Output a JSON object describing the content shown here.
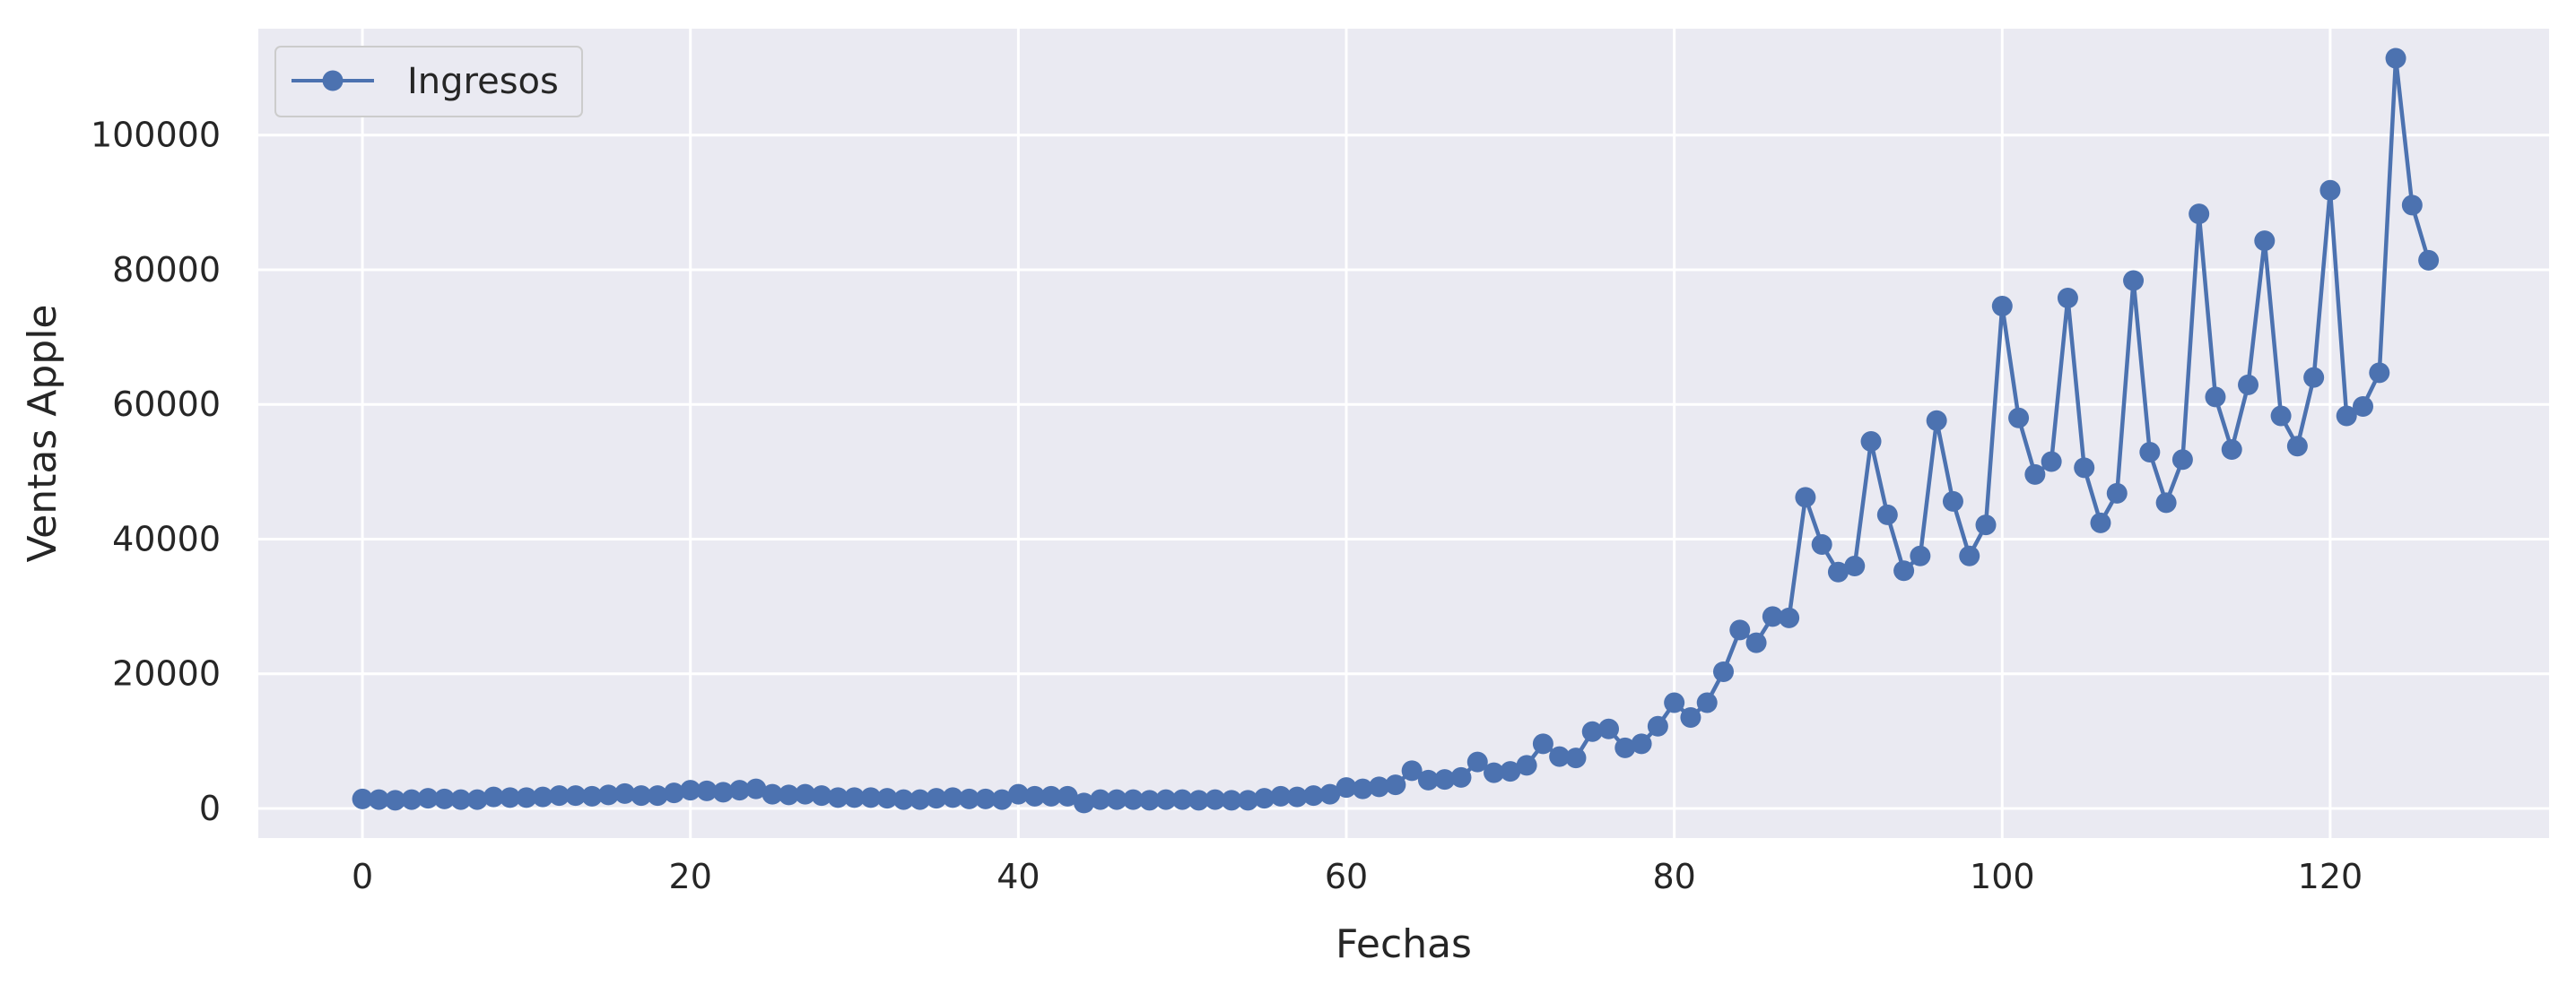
{
  "chart_data": {
    "type": "line",
    "title": "",
    "xlabel": "Fechas",
    "ylabel": "Ventas Apple",
    "xlim": [
      -6.35,
      133.35
    ],
    "ylim": [
      -4400,
      115800
    ],
    "xticks": [
      0,
      20,
      40,
      60,
      80,
      100,
      120
    ],
    "yticks": [
      0,
      20000,
      40000,
      60000,
      80000,
      100000
    ],
    "grid": true,
    "legend_position": "top-left",
    "colors": {
      "series": "#4c72b0",
      "background": "#eaeaf2",
      "grid": "#ffffff",
      "text": "#262626"
    },
    "series": [
      {
        "name": "Ingresos",
        "marker": "circle",
        "x": [
          0,
          1,
          2,
          3,
          4,
          5,
          6,
          7,
          8,
          9,
          10,
          11,
          12,
          13,
          14,
          15,
          16,
          17,
          18,
          19,
          20,
          21,
          22,
          23,
          24,
          25,
          26,
          27,
          28,
          29,
          30,
          31,
          32,
          33,
          34,
          35,
          36,
          37,
          38,
          39,
          40,
          41,
          42,
          43,
          44,
          45,
          46,
          47,
          48,
          49,
          50,
          51,
          52,
          53,
          54,
          55,
          56,
          57,
          58,
          59,
          60,
          61,
          62,
          63,
          64,
          65,
          66,
          67,
          68,
          69,
          70,
          71,
          72,
          73,
          74,
          75,
          76,
          77,
          78,
          79,
          80,
          81,
          82,
          83,
          84,
          85,
          86,
          87,
          88,
          89,
          90,
          91,
          92,
          93,
          94,
          95,
          96,
          97,
          98,
          99,
          100,
          101,
          102,
          103,
          104,
          105,
          106,
          107,
          108,
          109,
          110,
          111,
          112,
          113,
          114,
          115,
          116,
          117,
          118,
          119,
          120,
          121,
          122,
          123,
          124,
          125,
          126
        ],
        "values": [
          1400,
          1300,
          1200,
          1300,
          1500,
          1400,
          1300,
          1300,
          1700,
          1600,
          1600,
          1700,
          1900,
          1900,
          1800,
          2000,
          2200,
          1900,
          1900,
          2300,
          2700,
          2600,
          2400,
          2700,
          2900,
          2100,
          2000,
          2100,
          1900,
          1600,
          1600,
          1600,
          1500,
          1300,
          1300,
          1500,
          1600,
          1400,
          1400,
          1300,
          2100,
          1800,
          1800,
          1800,
          800,
          1300,
          1300,
          1300,
          1200,
          1300,
          1300,
          1200,
          1300,
          1200,
          1200,
          1500,
          1800,
          1700,
          1900,
          2100,
          3100,
          2900,
          3200,
          3500,
          5600,
          4200,
          4300,
          4600,
          6900,
          5300,
          5500,
          6400,
          9600,
          7700,
          7500,
          11400,
          11800,
          9000,
          9600,
          12200,
          15700,
          13500,
          15700,
          20300,
          26500,
          24600,
          28500,
          28300,
          46200,
          39200,
          35100,
          36000,
          54500,
          43600,
          35300,
          37500,
          57600,
          45600,
          37500,
          42100,
          74600,
          58000,
          49600,
          51500,
          75800,
          50600,
          42400,
          46800,
          78400,
          52900,
          45400,
          51800,
          88300,
          61100,
          53300,
          62900,
          84300,
          58300,
          53800,
          64000,
          91800,
          58300,
          59700,
          64700,
          111400,
          89600,
          81400
        ]
      }
    ]
  }
}
